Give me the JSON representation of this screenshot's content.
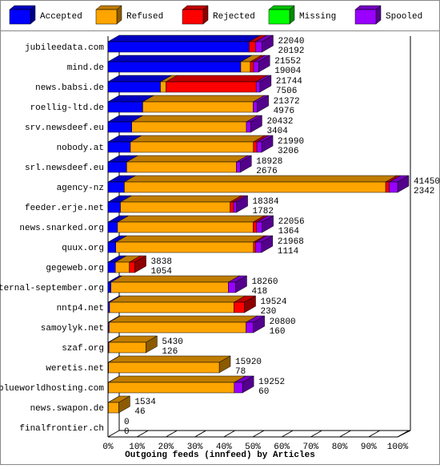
{
  "chart_data": {
    "type": "stacked-bar-3d",
    "orientation": "horizontal",
    "x_label": "Outgoing feeds (innfeed) by Articles",
    "categories": [
      "jubileedata.com",
      "mind.de",
      "news.babsi.de",
      "roellig-ltd.de",
      "srv.newsdeef.eu",
      "nobody.at",
      "srl.newsdeef.eu",
      "agency-nz",
      "feeder.erje.net",
      "news.snarked.org",
      "quux.org",
      "gegeweb.org",
      "eternal-september.org",
      "nntp4.net",
      "samoylyk.net",
      "szaf.org",
      "weretis.net",
      "blueworldhosting.com",
      "news.swapon.de",
      "finalfrontier.ch"
    ],
    "totals": [
      22040,
      21552,
      21744,
      21372,
      20432,
      21990,
      18928,
      41450,
      18384,
      22056,
      21968,
      3838,
      18260,
      19524,
      20800,
      5430,
      15920,
      19252,
      1534,
      0
    ],
    "series": [
      {
        "name": "Accepted",
        "color": "#0000ff",
        "values": [
          20192,
          19004,
          7506,
          4976,
          3404,
          3206,
          2676,
          2342,
          1782,
          1364,
          1114,
          1054,
          418,
          230,
          160,
          126,
          78,
          60,
          46,
          0
        ]
      },
      {
        "name": "Refused",
        "color": "#ffa500",
        "values": [
          0,
          1370,
          800,
          15800,
          16400,
          17600,
          15700,
          37400,
          15700,
          19400,
          19700,
          2000,
          16800,
          17800,
          19600,
          5304,
          15842,
          18000,
          1488,
          0
        ]
      },
      {
        "name": "Rejected",
        "color": "#ff0000",
        "values": [
          900,
          460,
          12900,
          0,
          0,
          500,
          0,
          500,
          500,
          500,
          300,
          784,
          0,
          1494,
          0,
          0,
          0,
          0,
          0,
          0
        ]
      },
      {
        "name": "Missing",
        "color": "#00ff00",
        "values": [
          0,
          0,
          0,
          0,
          0,
          0,
          0,
          0,
          0,
          0,
          0,
          0,
          0,
          0,
          0,
          0,
          0,
          0,
          0,
          0
        ]
      },
      {
        "name": "Spooled",
        "color": "#9900ff",
        "values": [
          948,
          718,
          538,
          596,
          628,
          684,
          552,
          1208,
          402,
          792,
          854,
          0,
          1042,
          0,
          1040,
          0,
          0,
          1192,
          0,
          0
        ]
      }
    ],
    "xlim": [
      0,
      41450
    ],
    "xticks": [
      {
        "value": 0,
        "label": "0%"
      },
      {
        "value": 4145,
        "label": "10%"
      },
      {
        "value": 8290,
        "label": "20%"
      },
      {
        "value": 12435,
        "label": "30%"
      },
      {
        "value": 16580,
        "label": "40%"
      },
      {
        "value": 20725,
        "label": "50%"
      },
      {
        "value": 24870,
        "label": "60%"
      },
      {
        "value": 29015,
        "label": "70%"
      },
      {
        "value": 33160,
        "label": "80%"
      },
      {
        "value": 37305,
        "label": "90%"
      },
      {
        "value": 41450,
        "label": "100%"
      }
    ]
  }
}
